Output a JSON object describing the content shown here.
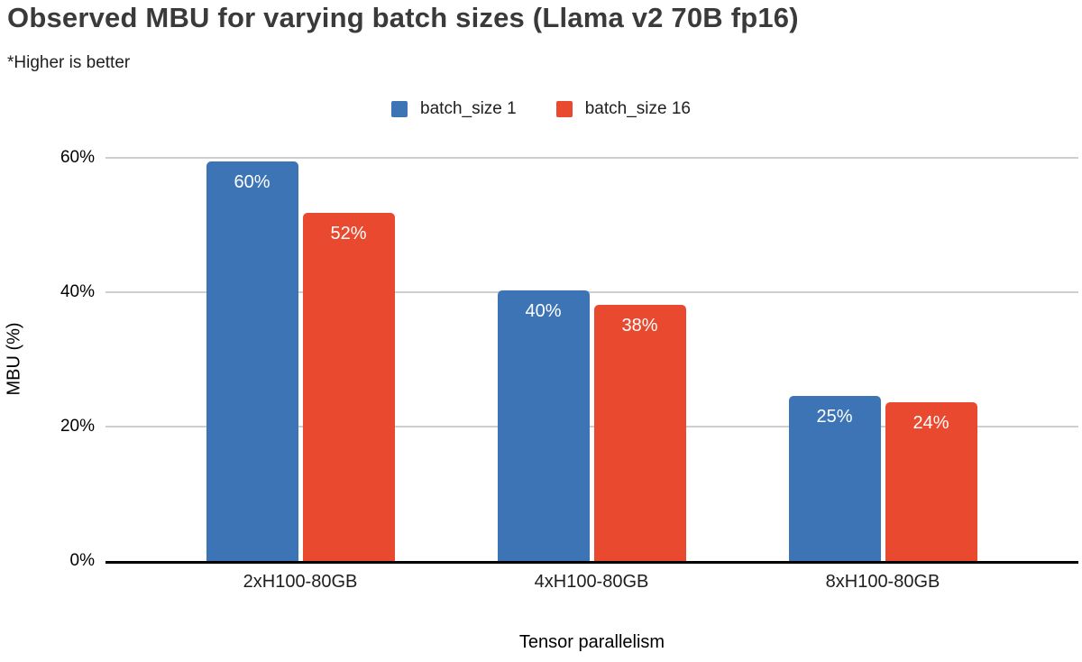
{
  "chart_data": {
    "type": "bar",
    "title": "Observed MBU for varying batch sizes (Llama v2 70B fp16)",
    "subtitle": "*Higher is better",
    "categories": [
      "2xH100-80GB",
      "4xH100-80GB",
      "8xH100-80GB"
    ],
    "series": [
      {
        "name": "batch_size 1",
        "color": "#3D74B5",
        "values": [
          60,
          40,
          25
        ],
        "bar_labels": [
          "60%",
          "40%",
          "25%"
        ],
        "bar_heights_pct": [
          59.5,
          40.3,
          24.5
        ]
      },
      {
        "name": "batch_size 16",
        "color": "#E94A2F",
        "values": [
          52,
          38,
          24
        ],
        "bar_labels": [
          "52%",
          "38%",
          "24%"
        ],
        "bar_heights_pct": [
          51.8,
          38.1,
          23.6
        ]
      }
    ],
    "xlabel": "Tensor parallelism",
    "ylabel": "MBU (%)",
    "ylim": [
      0,
      60
    ],
    "yticks": [
      {
        "value": 0,
        "label": "0%"
      },
      {
        "value": 20,
        "label": "20%"
      },
      {
        "value": 40,
        "label": "40%"
      },
      {
        "value": 60,
        "label": "60%"
      }
    ],
    "grid": true,
    "legend_position": "top-center",
    "bar_label_color": "#FFFFFF",
    "gridline_color": "#CFCFCF",
    "axis_line_color": "#000000",
    "title_color": "#3A3A3A"
  }
}
